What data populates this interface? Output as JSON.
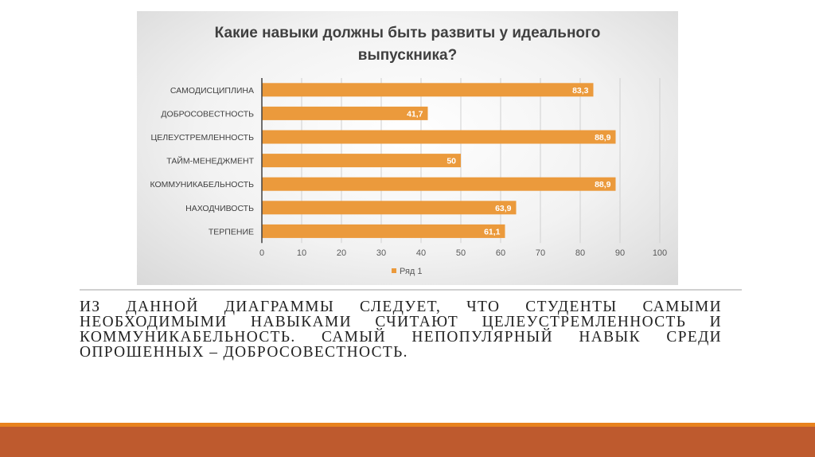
{
  "chart_data": {
    "type": "bar",
    "orientation": "horizontal",
    "title": "Какие навыки должны быть развиты у идеального выпускника?",
    "title_lines": [
      "Какие навыки должны быть развиты у идеального",
      "выпускника?"
    ],
    "categories": [
      "САМОДИСЦИПЛИНА",
      "ДОБРОСОВЕСТНОСТЬ",
      "ЦЕЛЕУСТРЕМЛЕННОСТЬ",
      "ТАЙМ-МЕНЕДЖМЕНТ",
      "КОММУНИКАБЕЛЬНОСТЬ",
      "НАХОДЧИВОСТЬ",
      "ТЕРПЕНИЕ"
    ],
    "series": [
      {
        "name": "Ряд 1",
        "values": [
          83.3,
          41.7,
          88.9,
          50,
          88.9,
          63.9,
          61.1
        ],
        "color": "#eb9a3c"
      }
    ],
    "data_labels": [
      "83,3",
      "41,7",
      "88,9",
      "50",
      "88,9",
      "63,9",
      "61,1"
    ],
    "xlim": [
      0,
      100
    ],
    "xticks": [
      "0",
      "10",
      "20",
      "30",
      "40",
      "50",
      "60",
      "70",
      "80",
      "90",
      "100"
    ],
    "grid": true,
    "legend_position": "bottom",
    "xlabel": "",
    "ylabel": ""
  },
  "caption": "Из данной диаграммы следует, что студенты самыми необходимыми навыками считают целеустремленность и коммуникабельность. Самый непопулярный навык среди опрошенных – добросовестность.",
  "colors": {
    "bar": "#eb9a3c",
    "band_orange": "#e8821e",
    "band_rust": "#be5a2e"
  }
}
